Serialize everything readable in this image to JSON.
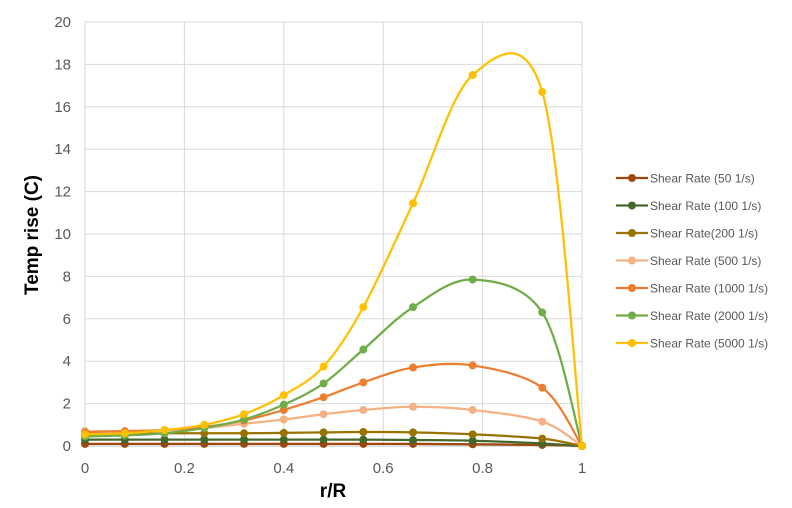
{
  "chart_data": {
    "type": "line",
    "title": "",
    "xlabel": "r/R",
    "ylabel": "Temp rise (C)",
    "xlim": [
      0,
      1
    ],
    "ylim": [
      0,
      20
    ],
    "x_ticks": [
      0,
      0.2,
      0.4,
      0.6,
      0.8,
      1
    ],
    "x_tick_labels": [
      "0",
      "0.2",
      "0.4",
      "0.6",
      "0.8",
      "1"
    ],
    "y_ticks": [
      0,
      2,
      4,
      6,
      8,
      10,
      12,
      14,
      16,
      18,
      20
    ],
    "y_tick_labels": [
      "0",
      "2",
      "4",
      "6",
      "8",
      "10",
      "12",
      "14",
      "16",
      "18",
      "20"
    ],
    "grid": true,
    "smooth": true,
    "legend_position": "right",
    "x": [
      0,
      0.08,
      0.16,
      0.24,
      0.32,
      0.4,
      0.48,
      0.56,
      0.66,
      0.78,
      0.92,
      1
    ],
    "series": [
      {
        "name": "Shear Rate (50 1/s)",
        "color": "#9E480E",
        "values": [
          0.1,
          0.1,
          0.1,
          0.1,
          0.1,
          0.1,
          0.1,
          0.1,
          0.1,
          0.08,
          0.05,
          0
        ]
      },
      {
        "name": "Shear Rate (100 1/s)",
        "color": "#43682B",
        "values": [
          0.3,
          0.3,
          0.3,
          0.3,
          0.3,
          0.3,
          0.3,
          0.3,
          0.28,
          0.25,
          0.12,
          0
        ]
      },
      {
        "name": "Shear Rate(200 1/s)",
        "color": "#997300",
        "values": [
          0.55,
          0.55,
          0.6,
          0.6,
          0.6,
          0.62,
          0.64,
          0.66,
          0.64,
          0.55,
          0.35,
          0
        ]
      },
      {
        "name": "Shear Rate (500 1/s)",
        "color": "#F4B183",
        "values": [
          0.7,
          0.7,
          0.75,
          0.85,
          1.05,
          1.25,
          1.5,
          1.7,
          1.85,
          1.7,
          1.15,
          0
        ]
      },
      {
        "name": "Shear Rate (1000 1/s)",
        "color": "#ED7D31",
        "values": [
          0.65,
          0.7,
          0.75,
          0.9,
          1.2,
          1.7,
          2.3,
          3.0,
          3.7,
          3.8,
          2.75,
          0
        ]
      },
      {
        "name": "Shear Rate (2000 1/s)",
        "color": "#70AD47",
        "values": [
          0.45,
          0.5,
          0.6,
          0.85,
          1.25,
          1.95,
          2.95,
          4.55,
          6.55,
          7.85,
          6.3,
          0
        ]
      },
      {
        "name": "Shear Rate (5000 1/s)",
        "color": "#FFC000",
        "values": [
          0.55,
          0.6,
          0.75,
          1.0,
          1.5,
          2.4,
          3.75,
          6.55,
          11.45,
          17.5,
          16.7,
          0
        ]
      }
    ]
  }
}
